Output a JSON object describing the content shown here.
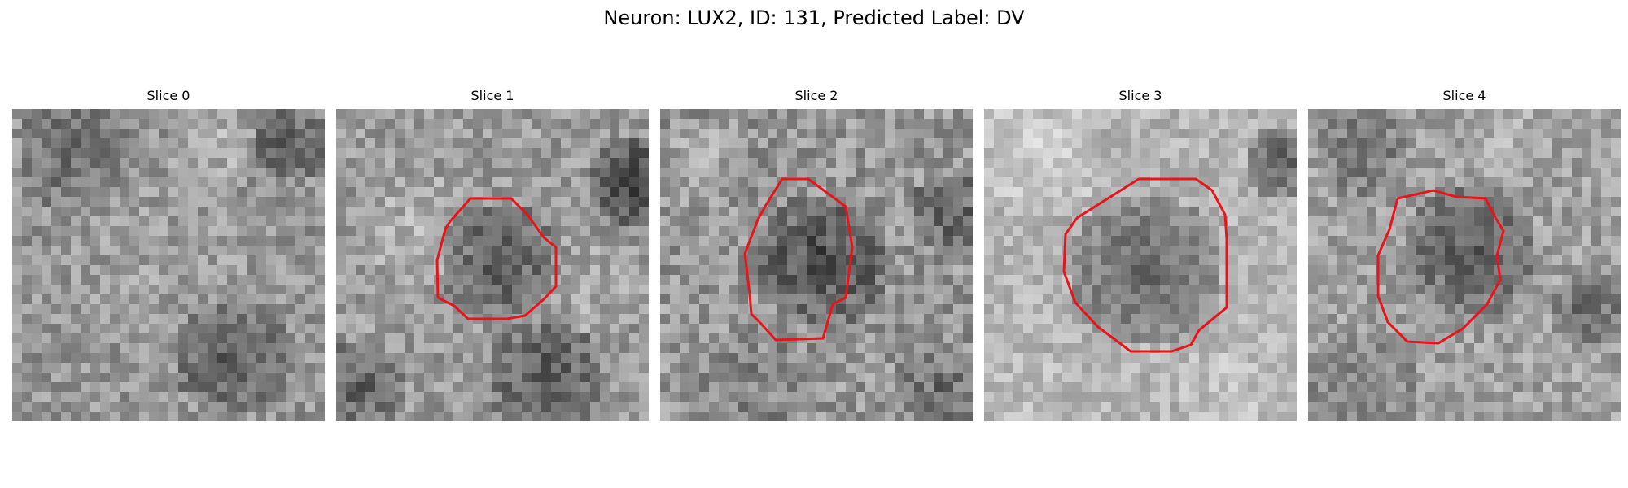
{
  "figure": {
    "title": "Neuron: LUX2, ID: 131, Predicted Label: DV"
  },
  "colors": {
    "contour": "#e8141c",
    "background": "#ffffff"
  },
  "slices": [
    {
      "label": "Slice 0",
      "has_contour": false
    },
    {
      "label": "Slice 1",
      "has_contour": true
    },
    {
      "label": "Slice 2",
      "has_contour": true
    },
    {
      "label": "Slice 3",
      "has_contour": true
    },
    {
      "label": "Slice 4",
      "has_contour": true
    }
  ]
}
